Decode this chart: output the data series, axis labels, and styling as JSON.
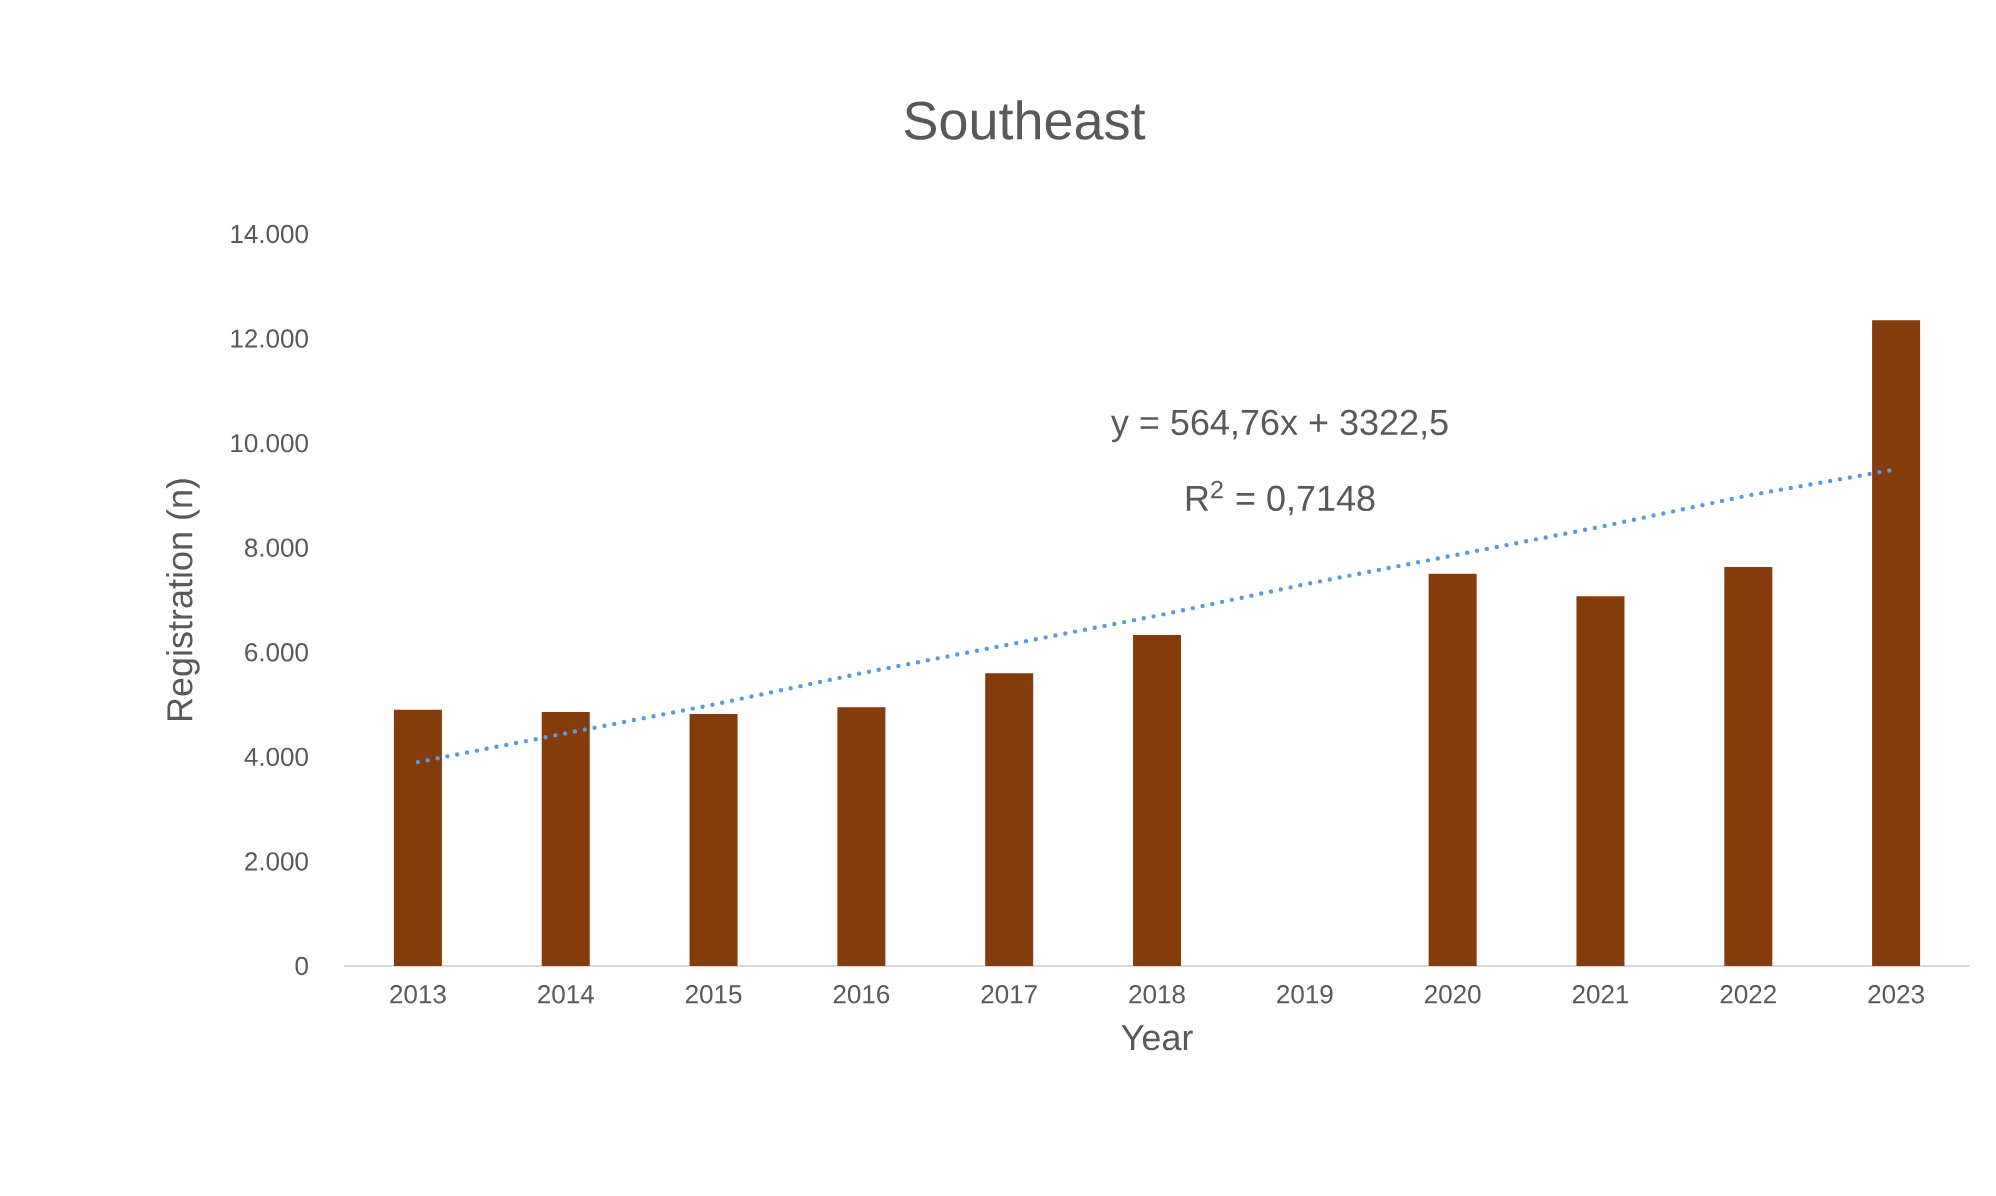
{
  "chart_data": {
    "type": "bar",
    "title": "Southeast",
    "xlabel": "Year",
    "ylabel": "Registration (n)",
    "categories": [
      "2013",
      "2014",
      "2015",
      "2016",
      "2017",
      "2018",
      "2019",
      "2020",
      "2021",
      "2022",
      "2023"
    ],
    "series": [
      {
        "color": "#843c0c",
        "values": [
          4900,
          4860,
          4820,
          4950,
          5600,
          6330,
          null,
          7500,
          7070,
          7630,
          12350
        ]
      },
      {
        "type": "line",
        "color": "#5b9bd5",
        "line_style": "dotted",
        "values": [
          3900,
          4450,
          5000,
          5600,
          6150,
          6700,
          7300,
          7850,
          8400,
          9000,
          9500
        ]
      }
    ],
    "ylim": [
      0,
      14000
    ],
    "yticks": [
      0,
      {
        "value": 2000,
        "label": "2.000"
      },
      {
        "value": 4000,
        "label": "4.000"
      },
      {
        "value": 6000,
        "label": "6.000"
      },
      {
        "value": 8000,
        "label": "8.000"
      },
      {
        "value": 10000,
        "label": "10.000"
      },
      {
        "value": 12000,
        "label": "12.000"
      },
      {
        "value": 14000,
        "label": "14.000"
      }
    ],
    "annotations": [
      "y = 564,76x + 3322,5",
      "R$^{2}$ = 0,7148"
    ],
    "grid": false
  }
}
